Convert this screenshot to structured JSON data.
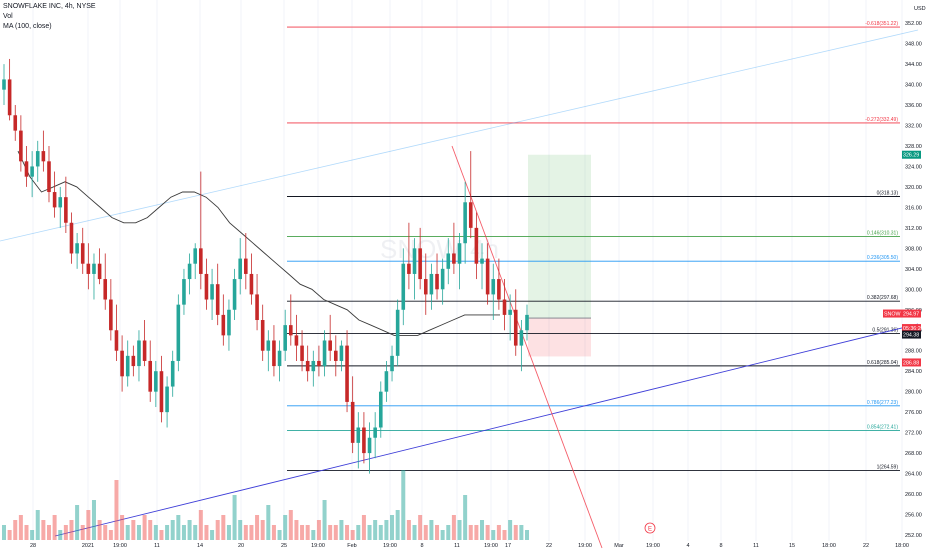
{
  "header": {
    "symbol_line": "SNOWFLAKE INC, 4h, NYSE",
    "vol_label": "Vol",
    "ma_label": "MA (100, close)"
  },
  "chart_data": {
    "type": "candlestick",
    "currency": "USD",
    "watermark": {
      "symbol": "SNOW",
      "interval": "4h"
    },
    "ylim": [
      252,
      353
    ],
    "y_ticks": [
      "352.00",
      "348.00",
      "344.00",
      "340.00",
      "336.00",
      "332.00",
      "328.00",
      "324.00",
      "320.00",
      "316.00",
      "312.00",
      "308.00",
      "304.00",
      "300.00",
      "296.00",
      "292.00",
      "288.00",
      "284.00",
      "280.00",
      "276.00",
      "272.00",
      "268.00",
      "264.00",
      "260.00",
      "256.00",
      "252.00"
    ],
    "x_tick_labels": [
      "28",
      "2021",
      "19:00",
      "11",
      "14",
      "20",
      "25",
      "19:00",
      "Feb",
      "19:00",
      "8",
      "11",
      "19:00",
      "17",
      "22",
      "19:00",
      "Mar",
      "19:00",
      "4",
      "8",
      "11",
      "15",
      "18:00",
      "22",
      "18:00",
      "29"
    ],
    "fib_levels": [
      {
        "label": "-0.618(351.22)",
        "value": 351.22,
        "color": "#f23645"
      },
      {
        "label": "-0.272(332.49)",
        "value": 332.49,
        "color": "#f23645"
      },
      {
        "label": "0(318.13)",
        "value": 318.13,
        "color": "#131722"
      },
      {
        "label": "0.146(310.31)",
        "value": 310.31,
        "color": "#43a047"
      },
      {
        "label": "0.236(305.50)",
        "value": 305.5,
        "color": "#2196f3"
      },
      {
        "label": "0.382(297.68)",
        "value": 297.68,
        "color": "#131722"
      },
      {
        "label": "0.5(291.36)",
        "value": 291.36,
        "color": "#131722"
      },
      {
        "label": "0.618(285.04)",
        "value": 285.04,
        "color": "#131722"
      },
      {
        "label": "0.786(277.23)",
        "value": 277.23,
        "color": "#2196f3"
      },
      {
        "label": "0.854(272.41)",
        "value": 272.41,
        "color": "#26a69a"
      },
      {
        "label": "1(264.59)",
        "value": 264.59,
        "color": "#131722"
      }
    ],
    "price_badges": [
      {
        "label": "326.29",
        "value": 326.29,
        "color": "#089981"
      },
      {
        "label": "SNOW",
        "value": 294.97,
        "color": "#f23645"
      },
      {
        "label": "294.97",
        "value": 294.97,
        "color": "#f23645"
      },
      {
        "label": "05:36:20",
        "value": 293.6,
        "color": "#f23645"
      },
      {
        "label": "294.38",
        "value": 291.55,
        "color": "#131722"
      },
      {
        "label": "286.88",
        "value": 286.88,
        "color": "#f23645"
      }
    ],
    "position": {
      "entry": 294.38,
      "target": 326.29,
      "stop": 286.88
    },
    "events_marker": "E",
    "candles_ohlc": [
      [
        339,
        344,
        336,
        341
      ],
      [
        341,
        345,
        333,
        334
      ],
      [
        334,
        336,
        329,
        331
      ],
      [
        331,
        334,
        323,
        325
      ],
      [
        325,
        328,
        320,
        322
      ],
      [
        322,
        327,
        318,
        324
      ],
      [
        324,
        329,
        321,
        327
      ],
      [
        327,
        331,
        323,
        325
      ],
      [
        325,
        328,
        317,
        319
      ],
      [
        319,
        323,
        314,
        316
      ],
      [
        316,
        320,
        312,
        318
      ],
      [
        318,
        322,
        311,
        313
      ],
      [
        313,
        315,
        305,
        307
      ],
      [
        307,
        311,
        304,
        309
      ],
      [
        309,
        312,
        303,
        305
      ],
      [
        305,
        309,
        300,
        303
      ],
      [
        303,
        307,
        298,
        305
      ],
      [
        305,
        308,
        301,
        302
      ],
      [
        302,
        307,
        296,
        298
      ],
      [
        298,
        302,
        290,
        292
      ],
      [
        292,
        297,
        286,
        288
      ],
      [
        288,
        291,
        280,
        283
      ],
      [
        283,
        290,
        281,
        287
      ],
      [
        287,
        289,
        283,
        285
      ],
      [
        285,
        292,
        282,
        290
      ],
      [
        290,
        294,
        285,
        286
      ],
      [
        286,
        290,
        278,
        280
      ],
      [
        280,
        286,
        277,
        284
      ],
      [
        284,
        287,
        274,
        276
      ],
      [
        276,
        283,
        273,
        281
      ],
      [
        281,
        288,
        279,
        286
      ],
      [
        286,
        299,
        284,
        297
      ],
      [
        297,
        304,
        295,
        302
      ],
      [
        302,
        307,
        299,
        305
      ],
      [
        305,
        309,
        302,
        308
      ],
      [
        308,
        323,
        300,
        303
      ],
      [
        303,
        306,
        296,
        298
      ],
      [
        298,
        304,
        294,
        301
      ],
      [
        301,
        305,
        293,
        295
      ],
      [
        295,
        299,
        289,
        291
      ],
      [
        291,
        298,
        288,
        296
      ],
      [
        296,
        304,
        294,
        302
      ],
      [
        302,
        310,
        299,
        306
      ],
      [
        306,
        311,
        300,
        303
      ],
      [
        303,
        307,
        297,
        299
      ],
      [
        299,
        303,
        292,
        294
      ],
      [
        294,
        297,
        286,
        288
      ],
      [
        288,
        292,
        284,
        290
      ],
      [
        290,
        293,
        283,
        285
      ],
      [
        285,
        290,
        282,
        288
      ],
      [
        288,
        296,
        286,
        293
      ],
      [
        293,
        299,
        289,
        291
      ],
      [
        291,
        295,
        286,
        289
      ],
      [
        289,
        292,
        284,
        286
      ],
      [
        286,
        289,
        282,
        284
      ],
      [
        284,
        288,
        281,
        286
      ],
      [
        286,
        289,
        283,
        285
      ],
      [
        285,
        292,
        283,
        290
      ],
      [
        290,
        295,
        286,
        288
      ],
      [
        288,
        291,
        283,
        286
      ],
      [
        286,
        290,
        284,
        289
      ],
      [
        289,
        292,
        276,
        278
      ],
      [
        278,
        283,
        268,
        270
      ],
      [
        270,
        276,
        265,
        273
      ],
      [
        273,
        276,
        266,
        268
      ],
      [
        268,
        274,
        264,
        271
      ],
      [
        271,
        276,
        267,
        273
      ],
      [
        273,
        282,
        271,
        280
      ],
      [
        280,
        286,
        278,
        284
      ],
      [
        284,
        289,
        282,
        287
      ],
      [
        287,
        298,
        285,
        296
      ],
      [
        296,
        308,
        293,
        305
      ],
      [
        305,
        313,
        300,
        303
      ],
      [
        303,
        310,
        298,
        308
      ],
      [
        308,
        312,
        300,
        302
      ],
      [
        302,
        307,
        295,
        299
      ],
      [
        299,
        305,
        296,
        303
      ],
      [
        303,
        307,
        298,
        300
      ],
      [
        300,
        306,
        297,
        304
      ],
      [
        304,
        310,
        301,
        307
      ],
      [
        307,
        313,
        303,
        305
      ],
      [
        305,
        311,
        300,
        309
      ],
      [
        309,
        321,
        305,
        317
      ],
      [
        317,
        327,
        310,
        312
      ],
      [
        312,
        315,
        302,
        305
      ],
      [
        305,
        309,
        300,
        306
      ],
      [
        306,
        309,
        297,
        299
      ],
      [
        299,
        305,
        294,
        302
      ],
      [
        302,
        306,
        296,
        298
      ],
      [
        298,
        302,
        292,
        295
      ],
      [
        295,
        299,
        290,
        296
      ],
      [
        296,
        300,
        287,
        289
      ],
      [
        289,
        294,
        284,
        292
      ],
      [
        292,
        297,
        290,
        295
      ]
    ],
    "ma100": [
      327,
      322,
      319,
      320,
      321,
      320,
      318,
      316,
      314,
      313,
      313,
      314,
      316,
      318,
      319,
      319,
      318,
      316,
      313,
      311,
      309,
      307,
      305,
      303,
      301,
      300,
      298,
      297,
      296,
      294,
      293,
      292,
      291,
      291,
      291,
      292,
      293,
      294,
      295,
      295,
      295,
      295
    ],
    "volumes": [
      3,
      2,
      4,
      5,
      3,
      2,
      6,
      4,
      3,
      5,
      2,
      3,
      4,
      7,
      3,
      6,
      8,
      4,
      3,
      2,
      12,
      5,
      3,
      4,
      3,
      5,
      4,
      3,
      2,
      3,
      4,
      5,
      3,
      4,
      3,
      6,
      3,
      2,
      4,
      5,
      3,
      9,
      4,
      3,
      3,
      5,
      4,
      7,
      3,
      2,
      5,
      6,
      4,
      3,
      3,
      2,
      4,
      8,
      3,
      3,
      4,
      3,
      2,
      3,
      5,
      3,
      4,
      3,
      4,
      5,
      6,
      14,
      4,
      3,
      5,
      3,
      4,
      3,
      2,
      3,
      5,
      4,
      9,
      3,
      3,
      4,
      3,
      2,
      3,
      2,
      4,
      3,
      3,
      2
    ]
  }
}
